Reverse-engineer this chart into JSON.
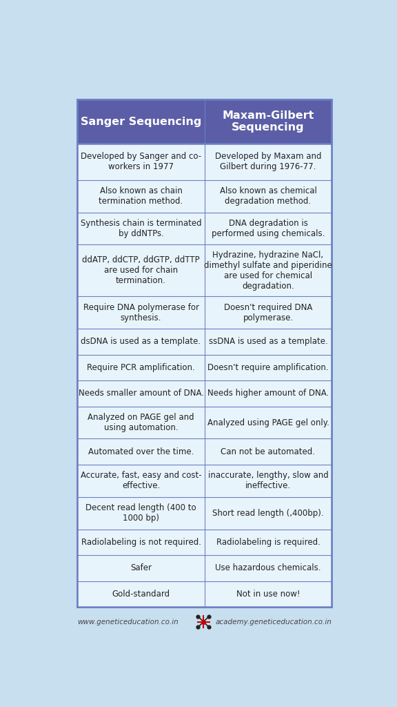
{
  "title_col1": "Sanger Sequencing",
  "title_col2": "Maxam-Gilbert\nSequencing",
  "header_bg": "#5B5EA6",
  "header_text_color": "#FFFFFF",
  "cell_bg": "#E8F4FB",
  "cell_text_color": "#222222",
  "border_color": "#6B7FC4",
  "outer_bg": "#C8DFF0",
  "footer_text_color": "#444444",
  "footer_left": "www.geneticeducation.co.in",
  "footer_right": "academy.geneticeducation.co.in",
  "rows": [
    [
      "Developed by Sanger and co-\nworkers in 1977",
      "Developed by Maxam and\nGilbert during 1976-77."
    ],
    [
      "Also known as chain\ntermination method.",
      "Also known as chemical\ndegradation method."
    ],
    [
      "Synthesis chain is terminated\nby ddNTPs.",
      "DNA degradation is\nperformed using chemicals."
    ],
    [
      "ddATP, ddCTP, ddGTP, ddTTP\nare used for chain\ntermination.",
      "Hydrazine, hydrazine NaCl,\ndimethyl sulfate and piperidine\nare used for chemical\ndegradation."
    ],
    [
      "Require DNA polymerase for\nsynthesis.",
      "Doesn't required DNA\npolymerase."
    ],
    [
      "dsDNA is used as a template.",
      "ssDNA is used as a template."
    ],
    [
      "Require PCR amplification.",
      "Doesn't require amplification."
    ],
    [
      "Needs smaller amount of DNA.",
      "Needs higher amount of DNA."
    ],
    [
      "Analyzed on PAGE gel and\nusing automation.",
      "Analyzed using PAGE gel only."
    ],
    [
      "Automated over the time.",
      "Can not be automated."
    ],
    [
      "Accurate, fast, easy and cost-\neffective.",
      "inaccurate, lengthy, slow and\nineffective."
    ],
    [
      "Decent read length (400 to\n1000 bp)",
      "Short read length (,400bp)."
    ],
    [
      "Radiolabeling is not required.",
      "Radiolabeling is required."
    ],
    [
      "Safer",
      "Use hazardous chemicals."
    ],
    [
      "Gold-standard",
      "Not in use now!"
    ]
  ],
  "row_heights_norm": [
    0.85,
    0.75,
    0.75,
    1.2,
    0.75,
    0.6,
    0.6,
    0.6,
    0.75,
    0.6,
    0.75,
    0.75,
    0.6,
    0.6,
    0.6
  ]
}
